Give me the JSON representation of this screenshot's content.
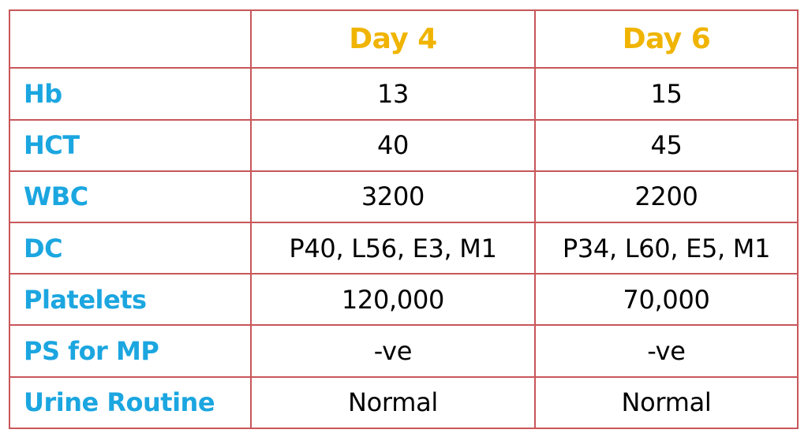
{
  "table": {
    "header": {
      "corner": "",
      "columns": [
        "Day 4",
        "Day 6"
      ]
    },
    "rows": [
      {
        "label": "Hb",
        "values": [
          "13",
          "15"
        ]
      },
      {
        "label": "HCT",
        "values": [
          "40",
          "45"
        ]
      },
      {
        "label": "WBC",
        "values": [
          "3200",
          "2200"
        ]
      },
      {
        "label": "DC",
        "values": [
          "P40, L56, E3, M1",
          "P34, L60, E5, M1"
        ]
      },
      {
        "label": "Platelets",
        "values": [
          "120,000",
          "70,000"
        ]
      },
      {
        "label": "PS for MP",
        "values": [
          "-ve",
          "-ve"
        ]
      },
      {
        "label": "Urine Routine",
        "values": [
          "Normal",
          "Normal"
        ]
      }
    ]
  },
  "colors": {
    "border": "#c8565a",
    "header_text": "#f0b400",
    "label_text": "#1ba6e0",
    "value_text": "#000000"
  }
}
